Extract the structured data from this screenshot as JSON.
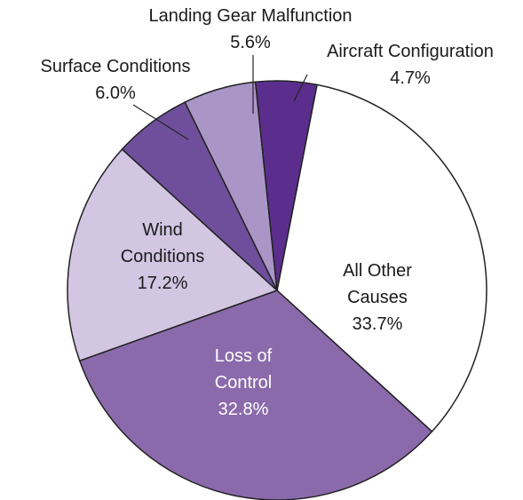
{
  "chart_data": {
    "type": "pie",
    "categories": [
      "All Other Causes",
      "Loss of Control",
      "Wind Conditions",
      "Surface Conditions",
      "Landing Gear Malfunction",
      "Aircraft Configuration"
    ],
    "values": [
      33.7,
      32.8,
      17.2,
      6.0,
      5.6,
      4.7
    ],
    "value_labels": [
      "33.7%",
      "32.8%",
      "17.2%",
      "6.0%",
      "5.6%",
      "4.7%"
    ],
    "colors": [
      "#ffffff",
      "#8a6aab",
      "#d2c6e3",
      "#6f4f9c",
      "#a996c7",
      "#5b2e8d"
    ]
  }
}
